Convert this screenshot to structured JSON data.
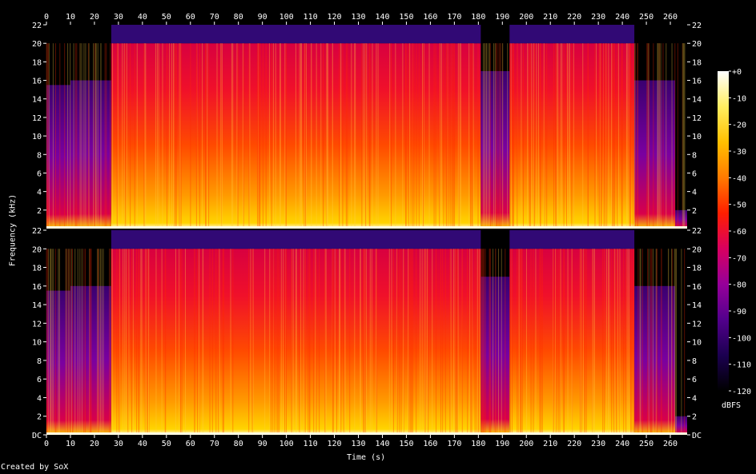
{
  "app": {
    "footer_text": "Created by SoX"
  },
  "chart_data": {
    "type": "heatmap",
    "title": "",
    "xlabel": "Time (s)",
    "ylabel": "Frequency (kHz)",
    "xlim": [
      0,
      267
    ],
    "ylim": [
      0,
      22
    ],
    "x_ticks": [
      0,
      10,
      20,
      30,
      40,
      50,
      60,
      70,
      80,
      90,
      100,
      110,
      120,
      130,
      140,
      150,
      160,
      170,
      180,
      190,
      200,
      210,
      220,
      230,
      240,
      250,
      260
    ],
    "y_ticks": [
      {
        "value": 0,
        "label": "DC"
      },
      {
        "value": 2,
        "label": "2"
      },
      {
        "value": 4,
        "label": "4"
      },
      {
        "value": 6,
        "label": "6"
      },
      {
        "value": 8,
        "label": "8"
      },
      {
        "value": 10,
        "label": "10"
      },
      {
        "value": 12,
        "label": "12"
      },
      {
        "value": 14,
        "label": "14"
      },
      {
        "value": 16,
        "label": "16"
      },
      {
        "value": 18,
        "label": "18"
      },
      {
        "value": 20,
        "label": "20"
      },
      {
        "value": 22,
        "label": "22"
      }
    ],
    "channels": [
      {
        "name": "",
        "bandwidth_kHz": [
          {
            "from": 0,
            "to": 10,
            "cutoff": 15.5
          },
          {
            "from": 10,
            "to": 27,
            "cutoff": 16
          },
          {
            "from": 27,
            "to": 181,
            "cutoff": 20
          },
          {
            "from": 181,
            "to": 193,
            "cutoff": 17
          },
          {
            "from": 193,
            "to": 245,
            "cutoff": 20
          },
          {
            "from": 245,
            "to": 262,
            "cutoff": 16
          },
          {
            "from": 262,
            "to": 267,
            "cutoff": 2
          }
        ]
      },
      {
        "name": "",
        "bandwidth_kHz": [
          {
            "from": 0,
            "to": 10,
            "cutoff": 15.5
          },
          {
            "from": 10,
            "to": 27,
            "cutoff": 16
          },
          {
            "from": 27,
            "to": 181,
            "cutoff": 20
          },
          {
            "from": 181,
            "to": 193,
            "cutoff": 17
          },
          {
            "from": 193,
            "to": 245,
            "cutoff": 20
          },
          {
            "from": 245,
            "to": 262,
            "cutoff": 16
          },
          {
            "from": 262,
            "to": 267,
            "cutoff": 2
          }
        ]
      }
    ],
    "colorbar": {
      "unit": "dBFS",
      "range": [
        -120,
        0
      ],
      "ticks": [
        "+0",
        "-10",
        "-20",
        "-30",
        "-40",
        "-50",
        "-60",
        "-70",
        "-80",
        "-90",
        "-100",
        "-110",
        "-120"
      ],
      "colors": [
        "#000000",
        "#1b0050",
        "#52008c",
        "#96009a",
        "#d80060",
        "#ff1e00",
        "#ff7a00",
        "#ffc000",
        "#ffee60",
        "#ffffff"
      ]
    }
  }
}
